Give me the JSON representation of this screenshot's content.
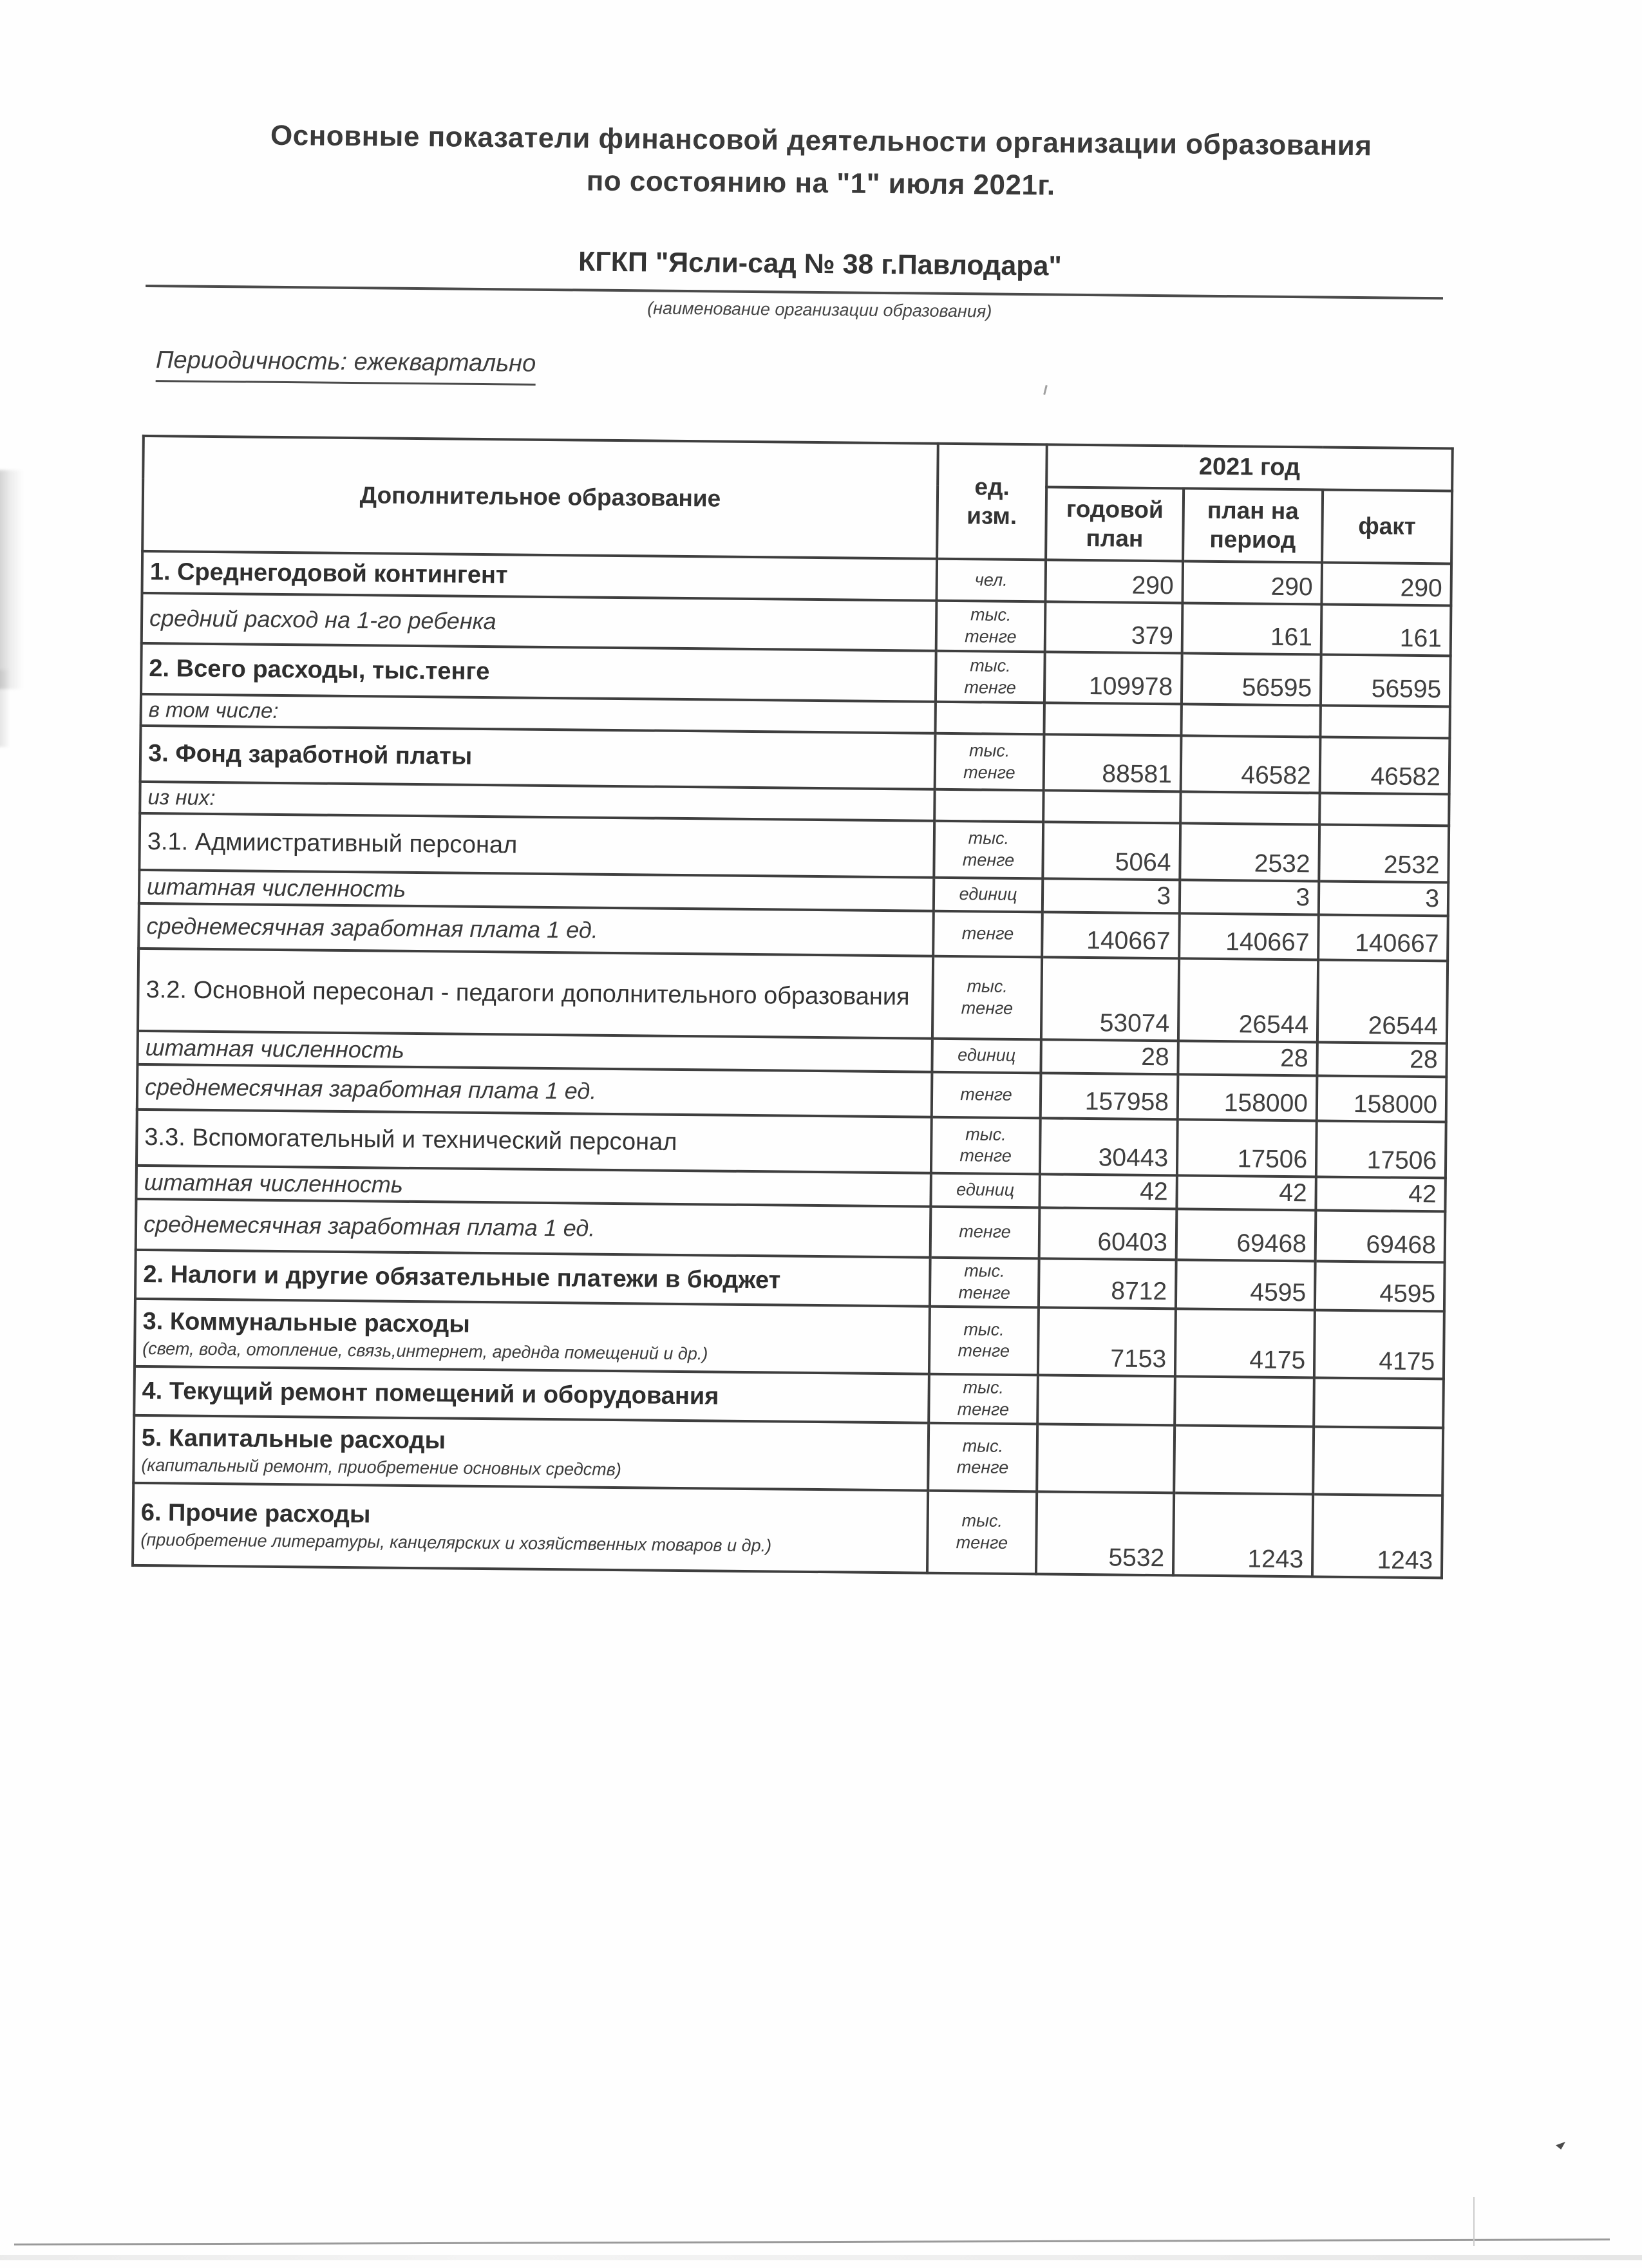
{
  "page": {
    "title_line1": "Основные показатели финансовой деятельности организации образования",
    "title_line2": "по состоянию на \"1\" июля 2021г.",
    "org_name": "КГКП \"Ясли-сад № 38 г.Павлодара\"",
    "org_caption": "(наименование организации образования)",
    "periodicity": "Периодичность: ежеквартально"
  },
  "table": {
    "header": {
      "col_label": "Дополнительное образование",
      "col_unit": "ед.\nизм.",
      "year_group": "2021 год",
      "col_annual": "годовой\nплан",
      "col_period": "план на\nпериод",
      "col_fact": "факт"
    },
    "rows": [
      {
        "label": "1. Среднегодовой контингент",
        "style": "bold",
        "sub": "",
        "unit": "чел.",
        "annual": "290",
        "period": "290",
        "fact": "290",
        "h": 65
      },
      {
        "label": "средний расход на 1-го ребенка",
        "style": "italic",
        "sub": "",
        "unit": "тыс.\nтенге",
        "annual": "379",
        "period": "161",
        "fact": "161",
        "h": 78
      },
      {
        "label": "2. Всего расходы, тыс.тенге",
        "style": "bold",
        "sub": "",
        "unit": "тыс.\nтенге",
        "annual": "109978",
        "period": "56595",
        "fact": "56595",
        "h": 79
      },
      {
        "label": "в том числе:",
        "style": "note",
        "sub": "",
        "unit": "",
        "annual": "",
        "period": "",
        "fact": "",
        "h": 49
      },
      {
        "label": "3. Фонд заработной платы",
        "style": "bold",
        "sub": "",
        "unit": "тыс.\nтенге",
        "annual": "88581",
        "period": "46582",
        "fact": "46582",
        "h": 87
      },
      {
        "label": "из них:",
        "style": "note",
        "sub": "",
        "unit": "",
        "annual": "",
        "period": "",
        "fact": "",
        "h": 49
      },
      {
        "label": "3.1. Адмиистративный персонал",
        "style": "plain",
        "sub": "",
        "unit": "тыс.\nтенге",
        "annual": "5064",
        "period": "2532",
        "fact": "2532",
        "h": 88
      },
      {
        "label": "штатная численность",
        "style": "italic",
        "sub": "",
        "unit": "единиц",
        "annual": "3",
        "period": "3",
        "fact": "3",
        "h": 49
      },
      {
        "label": "среднемесячная заработная плата 1 ед.",
        "style": "italic",
        "sub": "",
        "unit": "тенге",
        "annual": "140667",
        "period": "140667",
        "fact": "140667",
        "h": 70
      },
      {
        "label": "3.2. Основной пересонал - педагоги дополнительного образования",
        "style": "plain",
        "sub": "",
        "unit": "тыс.\nтенге",
        "annual": "53074",
        "period": "26544",
        "fact": "26544",
        "h": 128
      },
      {
        "label": "штатная численность",
        "style": "italic",
        "sub": "",
        "unit": "единиц",
        "annual": "28",
        "period": "28",
        "fact": "28",
        "h": 52
      },
      {
        "label": "среднемесячная заработная плата 1 ед.",
        "style": "italic",
        "sub": "",
        "unit": "тенге",
        "annual": "157958",
        "period": "158000",
        "fact": "158000",
        "h": 70
      },
      {
        "label": "3.3. Вспомогательный и технический персонал",
        "style": "plain",
        "sub": "",
        "unit": "тыс.\nтенге",
        "annual": "30443",
        "period": "17506",
        "fact": "17506",
        "h": 87
      },
      {
        "label": "штатная численность",
        "style": "italic",
        "sub": "",
        "unit": "единиц",
        "annual": "42",
        "period": "42",
        "fact": "42",
        "h": 49
      },
      {
        "label": "среднемесячная заработная плата 1 ед.",
        "style": "italic",
        "sub": "",
        "unit": "тенге",
        "annual": "60403",
        "period": "69468",
        "fact": "69468",
        "h": 79
      },
      {
        "label": "2. Налоги и другие обязательные платежи в бюджет",
        "style": "bold",
        "sub": "",
        "unit": "тыс.\nтенге",
        "annual": "8712",
        "period": "4595",
        "fact": "4595",
        "h": 76
      },
      {
        "label": "3. Коммунальные расходы",
        "style": "bold",
        "sub": "(свет, вода, отопление, связь,интернет, ареднда помещений и др.)",
        "unit": "тыс.\nтенге",
        "annual": "7153",
        "period": "4175",
        "fact": "4175",
        "h": 105
      },
      {
        "label": "4. Текущий ремонт помещений и оборудования",
        "style": "bold",
        "sub": "",
        "unit": "тыс.\nтенге",
        "annual": "",
        "period": "",
        "fact": "",
        "h": 76
      },
      {
        "label": "5. Капитальные расходы",
        "style": "bold",
        "sub": "(капитальный ремонт, приобретение основных средств)",
        "unit": "тыс.\nтенге",
        "annual": "",
        "period": "",
        "fact": "",
        "h": 105
      },
      {
        "label": "6. Прочие расходы",
        "style": "bold",
        "sub": "(приобретение литературы, канцелярских и хозяйственных товаров и др.)",
        "unit": "тыс.\nтенге",
        "annual": "5532",
        "period": "1243",
        "fact": "1243",
        "h": 128
      }
    ]
  }
}
